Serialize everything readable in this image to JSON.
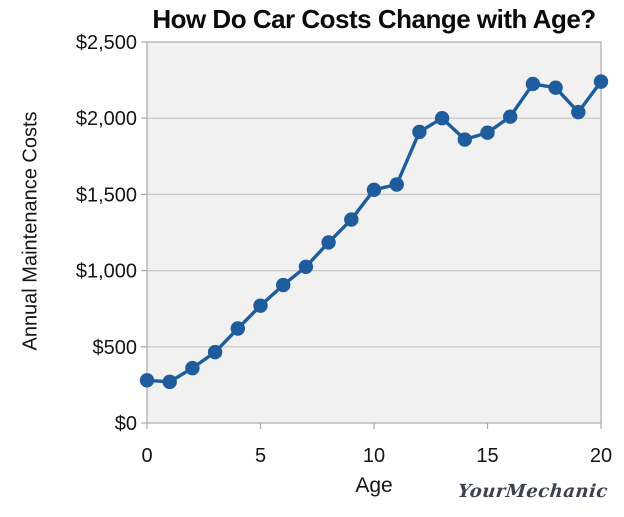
{
  "chart_data": {
    "type": "line",
    "title": "How Do Car Costs Change with Age?",
    "xlabel": "Age",
    "ylabel": "Annual Maintenance Costs",
    "x": [
      0,
      1,
      2,
      3,
      4,
      5,
      6,
      7,
      8,
      9,
      10,
      11,
      12,
      13,
      14,
      15,
      16,
      17,
      18,
      19,
      20
    ],
    "values": [
      280,
      270,
      360,
      465,
      620,
      770,
      905,
      1025,
      1185,
      1335,
      1530,
      1565,
      1910,
      2000,
      1860,
      1905,
      2010,
      2225,
      2200,
      2040,
      2240
    ],
    "xlim": [
      0,
      20
    ],
    "ylim": [
      0,
      2500
    ],
    "x_ticks": [
      0,
      5,
      10,
      15,
      20
    ],
    "x_tick_labels": [
      "0",
      "5",
      "10",
      "15",
      "20"
    ],
    "y_ticks": [
      0,
      500,
      1000,
      1500,
      2000,
      2500
    ],
    "y_tick_labels": [
      "$0",
      "$500",
      "$1,000",
      "$1,500",
      "$2,000",
      "$2,500"
    ],
    "grid": "horizontal",
    "legend": "none",
    "line_color": "#1E5C9E",
    "marker": "circle",
    "marker_color": "#1E5C9E",
    "plot_bg": "#F1F1F1",
    "grid_color": "#C6C6C6",
    "border_color": "#A9A9A9"
  },
  "footer": {
    "logo_text": "YourMechanic"
  }
}
